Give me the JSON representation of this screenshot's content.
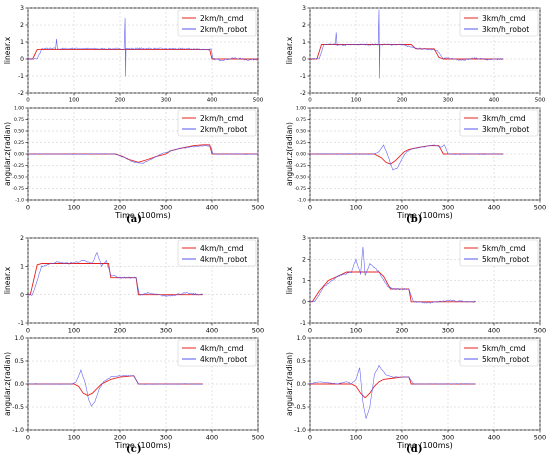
{
  "colors": {
    "cmd": "#e8211d",
    "robot": "#5555ee",
    "grid": "#c8c8c8"
  },
  "panel_labels": [
    "(a)",
    "(b)",
    "(c)",
    "(d)"
  ],
  "chart_data": [
    {
      "type": "line",
      "subplot": "a-top",
      "ylabel": "linear.x",
      "xlabel": "",
      "xlim": [
        0,
        500
      ],
      "ylim": [
        -2,
        3
      ],
      "xticks": [
        "0",
        "100",
        "200",
        "300",
        "400",
        "500"
      ],
      "yticks": [
        "-2",
        "-1",
        "0",
        "1",
        "2",
        "3"
      ],
      "grid": true,
      "legend": "top-right",
      "series": [
        {
          "name": "2km/h_cmd",
          "x": [
            0,
            10,
            20,
            25,
            395,
            400,
            500
          ],
          "y": [
            0,
            0,
            0.55,
            0.55,
            0.55,
            0,
            0
          ]
        },
        {
          "name": "2km/h_robot",
          "x": [
            0,
            20,
            30,
            60,
            62,
            64,
            100,
            150,
            209,
            211,
            212,
            213,
            214,
            250,
            300,
            350,
            398,
            402,
            420,
            450,
            480,
            500
          ],
          "y": [
            0,
            0,
            0.6,
            0.62,
            1.2,
            0.6,
            0.62,
            0.6,
            0.6,
            2.4,
            -1.0,
            0.6,
            0.6,
            0.62,
            0.6,
            0.6,
            0.55,
            0.0,
            -0.05,
            0.05,
            -0.05,
            0
          ]
        }
      ]
    },
    {
      "type": "line",
      "subplot": "a-bottom",
      "ylabel": "angular.z(radian)",
      "xlabel": "Time (100ms)",
      "xlim": [
        0,
        500
      ],
      "ylim": [
        -1,
        1
      ],
      "xticks": [
        "0",
        "100",
        "200",
        "300",
        "400",
        "500"
      ],
      "yticks": [
        "-1.0",
        "-0.75",
        "-0.50",
        "-0.25",
        "0.00",
        "0.25",
        "0.50",
        "0.75",
        "1.00"
      ],
      "grid": true,
      "legend": "top-right",
      "series": [
        {
          "name": "2km/h_cmd",
          "x": [
            0,
            190,
            205,
            220,
            240,
            260,
            280,
            300,
            310,
            330,
            360,
            380,
            395,
            400,
            500
          ],
          "y": [
            0,
            0,
            -0.05,
            -0.12,
            -0.18,
            -0.12,
            -0.05,
            0.0,
            0.07,
            0.12,
            0.18,
            0.2,
            0.2,
            0,
            0
          ]
        },
        {
          "name": "2km/h_robot",
          "x": [
            0,
            190,
            210,
            230,
            250,
            270,
            290,
            310,
            330,
            350,
            370,
            390,
            398,
            402,
            500
          ],
          "y": [
            0,
            0,
            -0.08,
            -0.18,
            -0.2,
            -0.1,
            0.0,
            0.07,
            0.12,
            0.15,
            0.17,
            0.18,
            0.15,
            0,
            0
          ]
        }
      ]
    },
    {
      "type": "line",
      "subplot": "b-top",
      "ylabel": "linear.x",
      "xlabel": "",
      "xlim": [
        0,
        500
      ],
      "ylim": [
        -2,
        3
      ],
      "xticks": [
        "0",
        "100",
        "200",
        "300",
        "400",
        "500"
      ],
      "yticks": [
        "-2",
        "-1",
        "0",
        "1",
        "2",
        "3"
      ],
      "grid": true,
      "legend": "top-right",
      "series": [
        {
          "name": "3km/h_cmd",
          "x": [
            0,
            15,
            25,
            30,
            220,
            230,
            270,
            280,
            290,
            420
          ],
          "y": [
            0,
            0,
            0.85,
            0.85,
            0.85,
            0.6,
            0.6,
            0.1,
            0,
            0
          ]
        },
        {
          "name": "3km/h_robot",
          "x": [
            0,
            20,
            30,
            55,
            57,
            59,
            100,
            148,
            150,
            151,
            152,
            153,
            200,
            225,
            240,
            275,
            290,
            300,
            330,
            360,
            390,
            420
          ],
          "y": [
            0,
            0,
            0.85,
            0.85,
            1.6,
            0.8,
            0.85,
            0.85,
            2.9,
            -1.1,
            0.8,
            0.85,
            0.85,
            0.65,
            0.6,
            0.55,
            0.0,
            0.05,
            -0.05,
            0.05,
            -0.05,
            0.0
          ]
        }
      ]
    },
    {
      "type": "line",
      "subplot": "b-bottom",
      "ylabel": "angular.z(radian)",
      "xlabel": "Time (100ms)",
      "xlim": [
        0,
        500
      ],
      "ylim": [
        -1,
        1
      ],
      "xticks": [
        "0",
        "100",
        "200",
        "300",
        "400",
        "500"
      ],
      "yticks": [
        "-1.0",
        "-0.75",
        "-0.50",
        "-0.25",
        "0.00",
        "0.25",
        "0.50",
        "0.75",
        "1.00"
      ],
      "grid": true,
      "legend": "top-right",
      "series": [
        {
          "name": "3km/h_cmd",
          "x": [
            0,
            140,
            155,
            165,
            175,
            185,
            195,
            205,
            215,
            225,
            240,
            260,
            280,
            290,
            420
          ],
          "y": [
            0,
            0,
            -0.08,
            -0.18,
            -0.22,
            -0.15,
            -0.05,
            0.05,
            0.1,
            0.12,
            0.15,
            0.18,
            0.18,
            0,
            0
          ]
        },
        {
          "name": "3km/h_robot",
          "x": [
            0,
            140,
            150,
            160,
            170,
            180,
            190,
            200,
            210,
            225,
            245,
            270,
            285,
            292,
            300,
            420
          ],
          "y": [
            0,
            0,
            0.05,
            0.2,
            -0.05,
            -0.35,
            -0.3,
            -0.1,
            0.05,
            0.12,
            0.15,
            0.2,
            0.15,
            0.2,
            0,
            0
          ]
        }
      ]
    },
    {
      "type": "line",
      "subplot": "c-top",
      "ylabel": "linear.x",
      "xlabel": "",
      "xlim": [
        0,
        500
      ],
      "ylim": [
        -1,
        2
      ],
      "xticks": [
        "0",
        "100",
        "200",
        "300",
        "400",
        "500"
      ],
      "yticks": [
        "-1",
        "0",
        "1",
        "2"
      ],
      "grid": true,
      "legend": "top-right",
      "series": [
        {
          "name": "4km/h_cmd",
          "x": [
            0,
            5,
            20,
            30,
            175,
            180,
            235,
            240,
            380
          ],
          "y": [
            0,
            0,
            1.05,
            1.1,
            1.1,
            0.6,
            0.6,
            0,
            0
          ]
        },
        {
          "name": "4km/h_robot",
          "x": [
            0,
            10,
            30,
            60,
            90,
            120,
            140,
            150,
            160,
            170,
            180,
            190,
            200,
            235,
            242,
            260,
            300,
            340,
            380
          ],
          "y": [
            0,
            0,
            1.0,
            1.15,
            1.1,
            1.2,
            1.1,
            1.5,
            1.0,
            1.2,
            0.7,
            0.65,
            0.6,
            0.6,
            0,
            0.05,
            -0.05,
            0.05,
            0
          ]
        }
      ]
    },
    {
      "type": "line",
      "subplot": "c-bottom",
      "ylabel": "angular.z(radian)",
      "xlabel": "Time (100ms)",
      "xlim": [
        0,
        500
      ],
      "ylim": [
        -1,
        1
      ],
      "xticks": [
        "0",
        "100",
        "200",
        "300",
        "400",
        "500"
      ],
      "yticks": [
        "-1.0",
        "-0.5",
        "0.0",
        "0.5",
        "1.0"
      ],
      "grid": true,
      "legend": "top-right",
      "series": [
        {
          "name": "4km/h_cmd",
          "x": [
            0,
            100,
            110,
            120,
            130,
            140,
            150,
            160,
            170,
            180,
            200,
            230,
            240,
            380
          ],
          "y": [
            0,
            0,
            -0.05,
            -0.2,
            -0.25,
            -0.2,
            -0.1,
            0.0,
            0.05,
            0.1,
            0.15,
            0.18,
            0,
            0
          ]
        },
        {
          "name": "4km/h_robot",
          "x": [
            0,
            95,
            105,
            115,
            125,
            132,
            138,
            145,
            155,
            165,
            180,
            200,
            230,
            240,
            380
          ],
          "y": [
            0,
            0,
            0.05,
            0.3,
            0.0,
            -0.35,
            -0.48,
            -0.4,
            -0.1,
            0.05,
            0.15,
            0.18,
            0.18,
            0,
            0
          ]
        }
      ]
    },
    {
      "type": "line",
      "subplot": "d-top",
      "ylabel": "linear.x",
      "xlabel": "",
      "xlim": [
        0,
        500
      ],
      "ylim": [
        -1,
        3
      ],
      "xticks": [
        "0",
        "100",
        "200",
        "300",
        "400",
        "500"
      ],
      "yticks": [
        "-1",
        "0",
        "1",
        "2",
        "3"
      ],
      "grid": true,
      "legend": "top-right",
      "series": [
        {
          "name": "5km/h_cmd",
          "x": [
            0,
            5,
            20,
            40,
            60,
            80,
            150,
            160,
            170,
            175,
            215,
            220,
            360
          ],
          "y": [
            0,
            0,
            0.5,
            1.0,
            1.2,
            1.4,
            1.4,
            1.2,
            0.8,
            0.6,
            0.6,
            0,
            0
          ]
        },
        {
          "name": "5km/h_robot",
          "x": [
            0,
            10,
            30,
            60,
            90,
            100,
            110,
            115,
            120,
            130,
            150,
            160,
            170,
            180,
            215,
            225,
            260,
            300,
            360
          ],
          "y": [
            0,
            0,
            0.7,
            1.2,
            1.4,
            2.0,
            1.3,
            2.6,
            1.2,
            1.8,
            1.4,
            1.0,
            0.7,
            0.6,
            0.6,
            0,
            -0.05,
            0.05,
            0
          ]
        }
      ]
    },
    {
      "type": "line",
      "subplot": "d-bottom",
      "ylabel": "angular.z(radian)",
      "xlabel": "Time (100ms)",
      "xlim": [
        0,
        500
      ],
      "ylim": [
        -1,
        1
      ],
      "xticks": [
        "0",
        "100",
        "200",
        "300",
        "400",
        "500"
      ],
      "yticks": [
        "-1.0",
        "-0.5",
        "0.0",
        "0.5",
        "1.0"
      ],
      "grid": true,
      "legend": "top-right",
      "series": [
        {
          "name": "5km/h_cmd",
          "x": [
            0,
            90,
            100,
            110,
            120,
            130,
            140,
            150,
            160,
            175,
            200,
            215,
            220,
            360
          ],
          "y": [
            0,
            0,
            -0.05,
            -0.2,
            -0.3,
            -0.2,
            -0.05,
            0.05,
            0.1,
            0.12,
            0.15,
            0.15,
            0,
            0
          ]
        },
        {
          "name": "5km/h_robot",
          "x": [
            0,
            20,
            40,
            60,
            80,
            90,
            100,
            108,
            115,
            122,
            130,
            140,
            150,
            165,
            180,
            215,
            225,
            360
          ],
          "y": [
            0,
            0.05,
            0.03,
            0.0,
            0.05,
            0.0,
            0.1,
            0.35,
            -0.4,
            -0.75,
            -0.5,
            0.2,
            0.4,
            0.2,
            0.15,
            0.15,
            0,
            0
          ]
        }
      ]
    }
  ]
}
